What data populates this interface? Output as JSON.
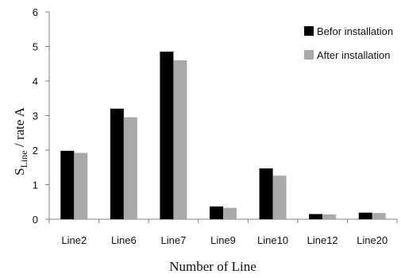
{
  "chart_data": {
    "type": "bar",
    "categories": [
      "Line2",
      "Line6",
      "Line7",
      "Line9",
      "Line10",
      "Line12",
      "Line20"
    ],
    "series": [
      {
        "name": "Befor installation",
        "color": "#000000",
        "values": [
          1.98,
          3.2,
          4.85,
          0.37,
          1.47,
          0.15,
          0.19
        ]
      },
      {
        "name": "After installation",
        "color": "#a9a9a9",
        "values": [
          1.92,
          2.95,
          4.6,
          0.33,
          1.26,
          0.14,
          0.18
        ]
      }
    ],
    "xlabel": "Number of Line",
    "ylabel": {
      "main": "S",
      "subscript": "Line",
      "rest": " / rate A"
    },
    "ylim": [
      0,
      6
    ],
    "yticks": [
      "0",
      "1",
      "2",
      "3",
      "4",
      "5",
      "6"
    ],
    "grid": false,
    "legend_position": "top-right"
  }
}
